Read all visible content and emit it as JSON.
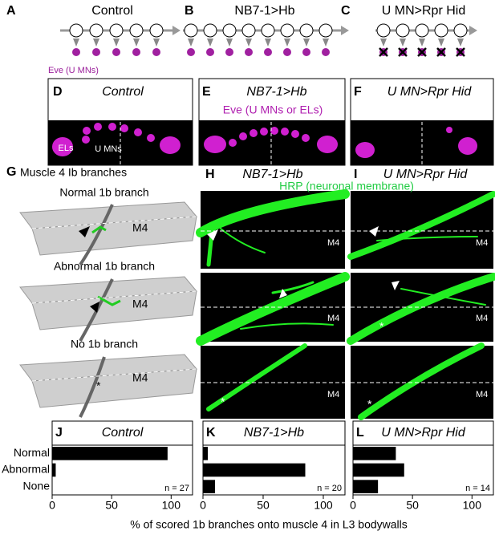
{
  "panels": [
    {
      "label": "A",
      "title": "Control"
    },
    {
      "label": "B",
      "title": "NB7-1>Hb"
    },
    {
      "label": "C",
      "title": "U MN>Rpr Hid"
    },
    {
      "label": "D",
      "title": "Control"
    },
    {
      "label": "E",
      "title": "NB7-1>Hb"
    },
    {
      "label": "F",
      "title": "U MN>Rpr Hid"
    },
    {
      "label": "G",
      "title": "Muscle 4 Ib branches"
    },
    {
      "label": "H",
      "title": "NB7-1>Hb"
    },
    {
      "label": "I",
      "title": "U MN>Rpr Hid"
    }
  ],
  "annotations": {
    "eve_u_mns": "Eve (U MNs)",
    "eve_u_mns_els": "Eve (U MNs or ELs)",
    "els": "ELs",
    "u_mns": "U MNs",
    "normal_branch": "Normal 1b branch",
    "abnormal_branch": "Abnormal 1b branch",
    "no_branch": "No 1b branch",
    "m4": "M4",
    "hrp": "HRP (neuronal membrane)",
    "asterisk": "*"
  },
  "bar_categories": [
    "Normal",
    "Abnormal",
    "None"
  ],
  "x_label": "% of scored 1b branches onto muscle 4 in L3 bodywalls",
  "chart_data": [
    {
      "type": "bar",
      "label": "J",
      "title": "Control",
      "values": [
        97,
        3,
        0
      ],
      "color": "#000000",
      "xlim": [
        0,
        118
      ],
      "xticks": [
        0,
        50,
        100
      ],
      "annotation": "n = 27"
    },
    {
      "type": "bar",
      "label": "K",
      "title": "NB7-1>Hb",
      "values": [
        4,
        85,
        10
      ],
      "color": "#000000",
      "xlim": [
        0,
        118
      ],
      "xticks": [
        0,
        50,
        100
      ],
      "annotation": "n = 20"
    },
    {
      "type": "bar",
      "label": "L",
      "title": "U MN>Rpr Hid",
      "values": [
        36,
        43,
        21
      ],
      "color": "#000000",
      "xlim": [
        0,
        118
      ],
      "xticks": [
        0,
        50,
        100
      ],
      "annotation": "n = 14"
    }
  ]
}
